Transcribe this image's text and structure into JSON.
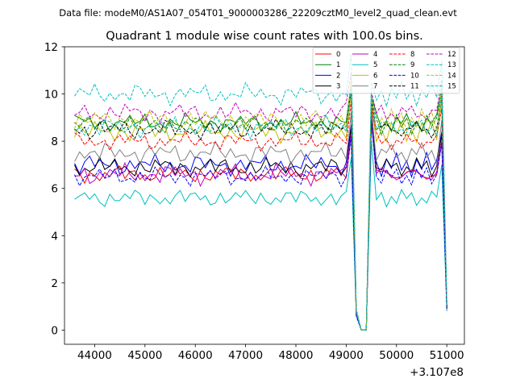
{
  "header": {
    "data_file": "Data file: modeM0/AS1A07_054T01_9000003286_22209cztM0_level2_quad_clean.evt"
  },
  "chart_data": {
    "type": "line",
    "title": "Quadrant 1 module wise count rates with 100.0s bins.",
    "xlabel": "",
    "ylabel": "",
    "x_offset_label": "+3.107e8",
    "xlim": [
      43400,
      51350
    ],
    "ylim": [
      -0.6,
      12
    ],
    "xticks": [
      44000,
      45000,
      46000,
      47000,
      48000,
      49000,
      50000,
      51000
    ],
    "xtick_labels": [
      "44000",
      "45000",
      "46000",
      "47000",
      "48000",
      "49000",
      "50000",
      "51000"
    ],
    "yticks": [
      0,
      2,
      4,
      6,
      8,
      10,
      12
    ],
    "ytick_labels": [
      "0",
      "2",
      "4",
      "6",
      "8",
      "10",
      "12"
    ],
    "grid": false,
    "legend_position": "top-right",
    "x_start": 43600,
    "x_step": 100,
    "series": [
      {
        "name": "0",
        "color": "#ff0000",
        "dash": "solid",
        "base": 6.6,
        "noise": 0.35,
        "phase": 0.3,
        "drop": [
          0.7,
          0.0,
          9.5,
          0.9
        ]
      },
      {
        "name": "1",
        "color": "#008000",
        "dash": "solid",
        "base": 8.8,
        "noise": 0.35,
        "phase": 1.1,
        "drop": [
          0.8,
          0.0,
          9.9,
          1.0
        ]
      },
      {
        "name": "2",
        "color": "#0000ff",
        "dash": "solid",
        "base": 7.0,
        "noise": 0.4,
        "phase": 2.0,
        "drop": [
          0.7,
          0.0,
          9.2,
          0.9
        ]
      },
      {
        "name": "3",
        "color": "#000000",
        "dash": "solid",
        "base": 6.9,
        "noise": 0.4,
        "phase": 2.7,
        "drop": [
          0.7,
          0.0,
          9.0,
          0.9
        ]
      },
      {
        "name": "4",
        "color": "#bf00bf",
        "dash": "solid",
        "base": 6.6,
        "noise": 0.4,
        "phase": 3.4,
        "drop": [
          0.7,
          0.0,
          8.8,
          0.9
        ]
      },
      {
        "name": "5",
        "color": "#00bfbf",
        "dash": "solid",
        "base": 5.6,
        "noise": 0.35,
        "phase": 4.2,
        "drop": [
          0.6,
          0.0,
          8.0,
          0.8
        ]
      },
      {
        "name": "6",
        "color": "#bfbf00",
        "dash": "solid",
        "base": 8.4,
        "noise": 0.4,
        "phase": 5.0,
        "drop": [
          0.7,
          0.0,
          9.6,
          1.0
        ]
      },
      {
        "name": "7",
        "color": "#808080",
        "dash": "solid",
        "base": 7.5,
        "noise": 0.4,
        "phase": 5.8,
        "drop": [
          0.7,
          0.0,
          9.3,
          0.9
        ]
      },
      {
        "name": "8",
        "color": "#ff0000",
        "dash": "dashed",
        "base": 8.0,
        "noise": 0.35,
        "phase": 0.8,
        "drop": [
          0.7,
          0.0,
          9.4,
          0.9
        ]
      },
      {
        "name": "9",
        "color": "#008000",
        "dash": "dashed",
        "base": 8.7,
        "noise": 0.35,
        "phase": 1.6,
        "drop": [
          0.8,
          0.0,
          9.8,
          1.0
        ]
      },
      {
        "name": "10",
        "color": "#0000ff",
        "dash": "dashed",
        "base": 6.5,
        "noise": 0.35,
        "phase": 2.4,
        "drop": [
          0.6,
          0.0,
          8.9,
          0.9
        ]
      },
      {
        "name": "11",
        "color": "#000000",
        "dash": "dashed",
        "base": 8.5,
        "noise": 0.4,
        "phase": 3.1,
        "drop": [
          0.8,
          0.0,
          9.7,
          1.0
        ]
      },
      {
        "name": "12",
        "color": "#bf00bf",
        "dash": "dashed",
        "base": 9.2,
        "noise": 0.4,
        "phase": 3.9,
        "drop": [
          0.8,
          0.0,
          10.1,
          1.1
        ]
      },
      {
        "name": "13",
        "color": "#00bfbf",
        "dash": "dashed",
        "base": 10.0,
        "noise": 0.4,
        "phase": 4.6,
        "drop": [
          0.9,
          0.0,
          10.5,
          1.2
        ]
      },
      {
        "name": "14",
        "color": "#bfbf00",
        "dash": "dashed",
        "base": 8.9,
        "noise": 0.4,
        "phase": 5.3,
        "drop": [
          0.8,
          0.0,
          9.9,
          1.0
        ]
      },
      {
        "name": "15",
        "color": "#00bfbf",
        "dash": "dashed",
        "base": 8.6,
        "noise": 0.4,
        "phase": 6.1,
        "drop": [
          0.8,
          0.0,
          10.0,
          1.0
        ]
      }
    ]
  }
}
